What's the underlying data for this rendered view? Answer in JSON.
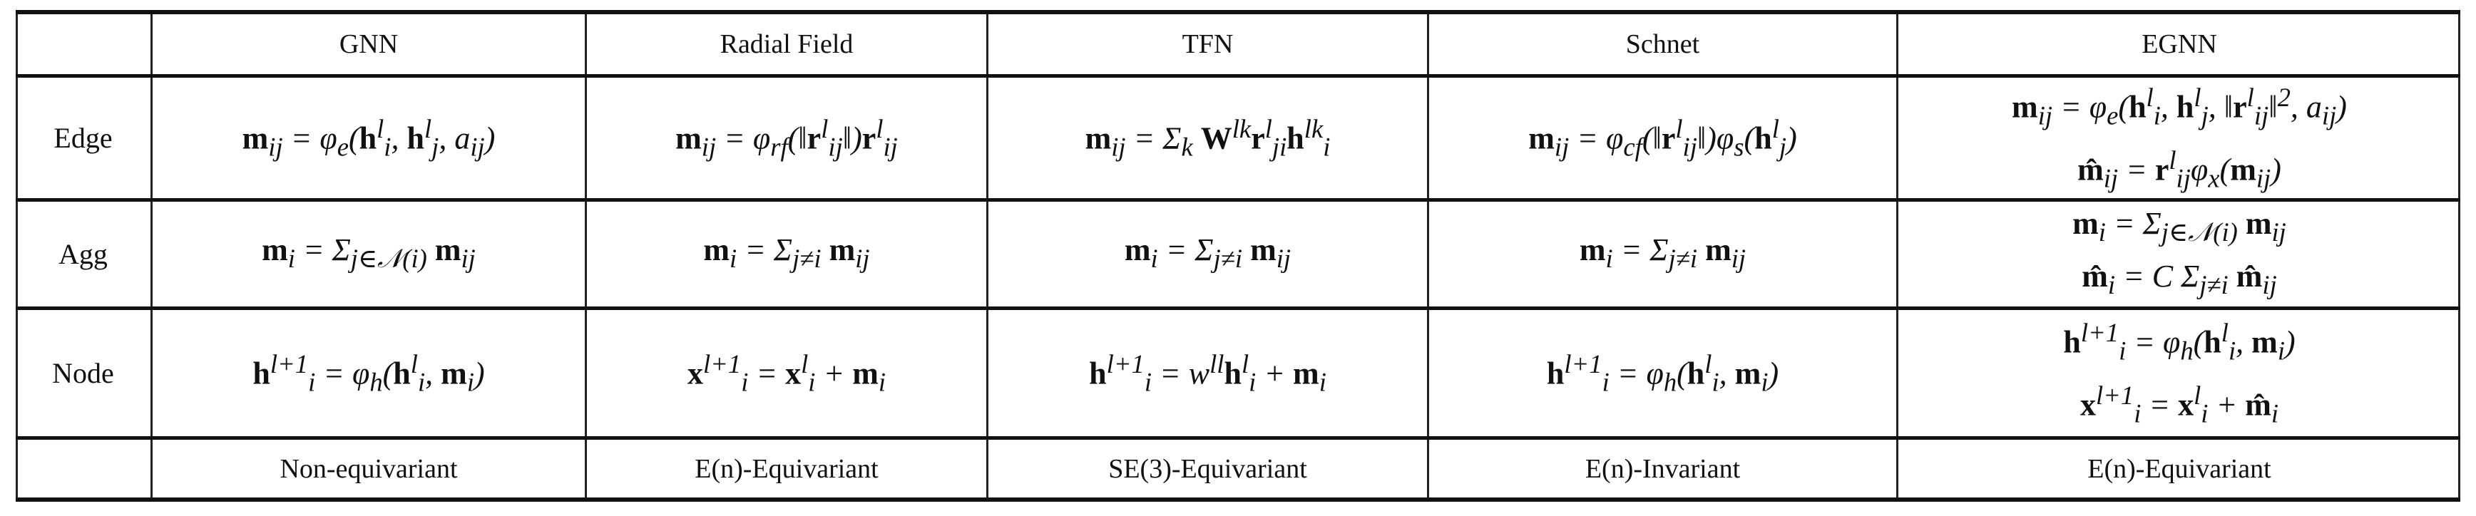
{
  "columns": [
    "GNN",
    "Radial Field",
    "TFN",
    "Schnet",
    "EGNN"
  ],
  "rows": [
    {
      "label": "Edge",
      "cells": [
        [
          "m_ij = φ_e(h_i^l, h_j^l, a_ij)"
        ],
        [
          "m_ij = φ_rf(‖r_ij^l‖) r_ij^l"
        ],
        [
          "m_ij = Σ_k W^lk r_ji^l h_i^lk"
        ],
        [
          "m_ij = φ_cf(‖r_ij^l‖) φ_s(h_j^l)"
        ],
        [
          "m_ij = φ_e(h_i^l, h_j^l, ‖r_ij^l‖², a_ij)",
          "m̂_ij = r_ij^l φ_x(m_ij)"
        ]
      ]
    },
    {
      "label": "Agg",
      "cells": [
        [
          "m_i = Σ_{j∈N(i)} m_ij"
        ],
        [
          "m_i = Σ_{j≠i} m_ij"
        ],
        [
          "m_i = Σ_{j≠i} m_ij"
        ],
        [
          "m_i = Σ_{j≠i} m_ij"
        ],
        [
          "m_i = Σ_{j∈N(i)} m_ij",
          "m̂_i = C Σ_{j≠i} m̂_ij"
        ]
      ]
    },
    {
      "label": "Node",
      "cells": [
        [
          "h_i^{l+1} = φ_h(h_i^l, m_i)"
        ],
        [
          "x_i^{l+1} = x_i^l + m_i"
        ],
        [
          "h_i^{l+1} = w^ll h_i^l + m_i"
        ],
        [
          "h_i^{l+1} = φ_h(h_i^l, m_i)"
        ],
        [
          "h_i^{l+1} = φ_h(h_i^l, m_i)",
          "x_i^{l+1} = x_i^l + m̂_i"
        ]
      ]
    }
  ],
  "footer": [
    "Non-equivariant",
    "E(n)-Equivariant",
    "SE(3)-Equivariant",
    "E(n)-Invariant",
    "E(n)-Equivariant"
  ]
}
